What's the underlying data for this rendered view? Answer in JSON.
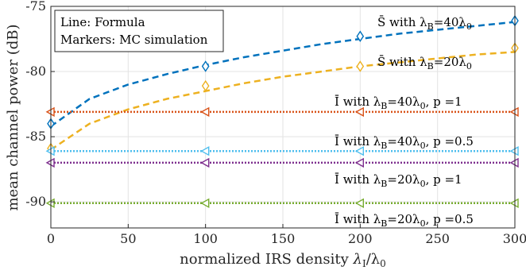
{
  "chart_data": {
    "type": "line",
    "xlabel": "normalized IRS density λ_I/λ_0",
    "xlabel_main": "normalized IRS density ",
    "xlabel_var": "λ",
    "xlabel_sub": "I",
    "xlabel_rest": "/λ",
    "xlabel_sub2": "0",
    "ylabel": "mean channel power (dB)",
    "xlim": [
      0,
      300
    ],
    "ylim": [
      -92,
      -75
    ],
    "xticks": [
      0,
      50,
      100,
      150,
      200,
      250,
      300
    ],
    "yticks": [
      -75,
      -80,
      -85,
      -90
    ],
    "grid": true,
    "legend_box": {
      "line1": "Line: Formula",
      "line2": "Markers: MC simulation",
      "position": "top-left"
    },
    "series": [
      {
        "label_main": "S̄ with λ",
        "label_sub": "B",
        "label_tail": "=40λ",
        "label_sub2": "0",
        "label_p": "",
        "color": "#0072BD",
        "line_style": "dashed",
        "marker": "diamond",
        "formula": {
          "x": [
            0,
            25,
            50,
            75,
            100,
            125,
            150,
            175,
            200,
            225,
            250,
            275,
            300
          ],
          "y": [
            -84.2,
            -82.1,
            -81.0,
            -80.2,
            -79.5,
            -78.9,
            -78.4,
            -77.9,
            -77.5,
            -77.1,
            -76.8,
            -76.5,
            -76.2
          ]
        },
        "markers": {
          "x": [
            0,
            100,
            200,
            300
          ],
          "y": [
            -84.0,
            -79.6,
            -77.3,
            -76.1
          ]
        }
      },
      {
        "label_main": "S̄ with λ",
        "label_sub": "B",
        "label_tail": "=20λ",
        "label_sub2": "0",
        "label_p": "",
        "color": "#EDB120",
        "line_style": "dashed",
        "marker": "diamond",
        "formula": {
          "x": [
            0,
            25,
            50,
            75,
            100,
            125,
            150,
            175,
            200,
            225,
            250,
            275,
            300
          ],
          "y": [
            -86.0,
            -84.0,
            -82.9,
            -82.1,
            -81.5,
            -80.9,
            -80.4,
            -80.0,
            -79.6,
            -79.3,
            -79.0,
            -78.7,
            -78.5
          ]
        },
        "markers": {
          "x": [
            0,
            100,
            200,
            300
          ],
          "y": [
            -85.9,
            -81.1,
            -79.6,
            -78.2
          ]
        }
      },
      {
        "label_main": "Ī with λ",
        "label_sub": "B",
        "label_tail": "=40λ",
        "label_sub2": "0",
        "label_p": ", p =1",
        "color": "#D95319",
        "line_style": "dotted",
        "marker": "triangle-left",
        "formula": {
          "x": [
            0,
            300
          ],
          "y": [
            -83.1,
            -83.1
          ]
        },
        "markers": {
          "x": [
            0,
            100,
            200,
            300
          ],
          "y": [
            -83.1,
            -83.1,
            -83.1,
            -83.1
          ]
        }
      },
      {
        "label_main": "Ī with λ",
        "label_sub": "B",
        "label_tail": "=40λ",
        "label_sub2": "0",
        "label_p": ", p =0.5",
        "color": "#4DBEEE",
        "line_style": "dotted",
        "marker": "triangle-left",
        "formula": {
          "x": [
            0,
            300
          ],
          "y": [
            -86.1,
            -86.1
          ]
        },
        "markers": {
          "x": [
            0,
            100,
            200,
            300
          ],
          "y": [
            -86.1,
            -86.1,
            -86.1,
            -86.1
          ]
        }
      },
      {
        "label_main": "Ī with λ",
        "label_sub": "B",
        "label_tail": "=20λ",
        "label_sub2": "0",
        "label_p": ", p =1",
        "color": "#7E2F8E",
        "line_style": "dotted",
        "marker": "triangle-left",
        "formula": {
          "x": [
            0,
            300
          ],
          "y": [
            -87.0,
            -87.0
          ]
        },
        "markers": {
          "x": [
            0,
            100,
            200,
            300
          ],
          "y": [
            -87.0,
            -87.0,
            -87.0,
            -87.0
          ]
        }
      },
      {
        "label_main": "Ī with λ",
        "label_sub": "B",
        "label_tail": "=20λ",
        "label_sub2": "0",
        "label_p": ", p =0.5",
        "color": "#77AC30",
        "line_style": "dotted",
        "marker": "triangle-left",
        "formula": {
          "x": [
            0,
            300
          ],
          "y": [
            -90.1,
            -90.1
          ]
        },
        "markers": {
          "x": [
            0,
            100,
            200,
            300
          ],
          "y": [
            -90.1,
            -90.1,
            -90.1,
            -90.1
          ]
        }
      }
    ]
  }
}
